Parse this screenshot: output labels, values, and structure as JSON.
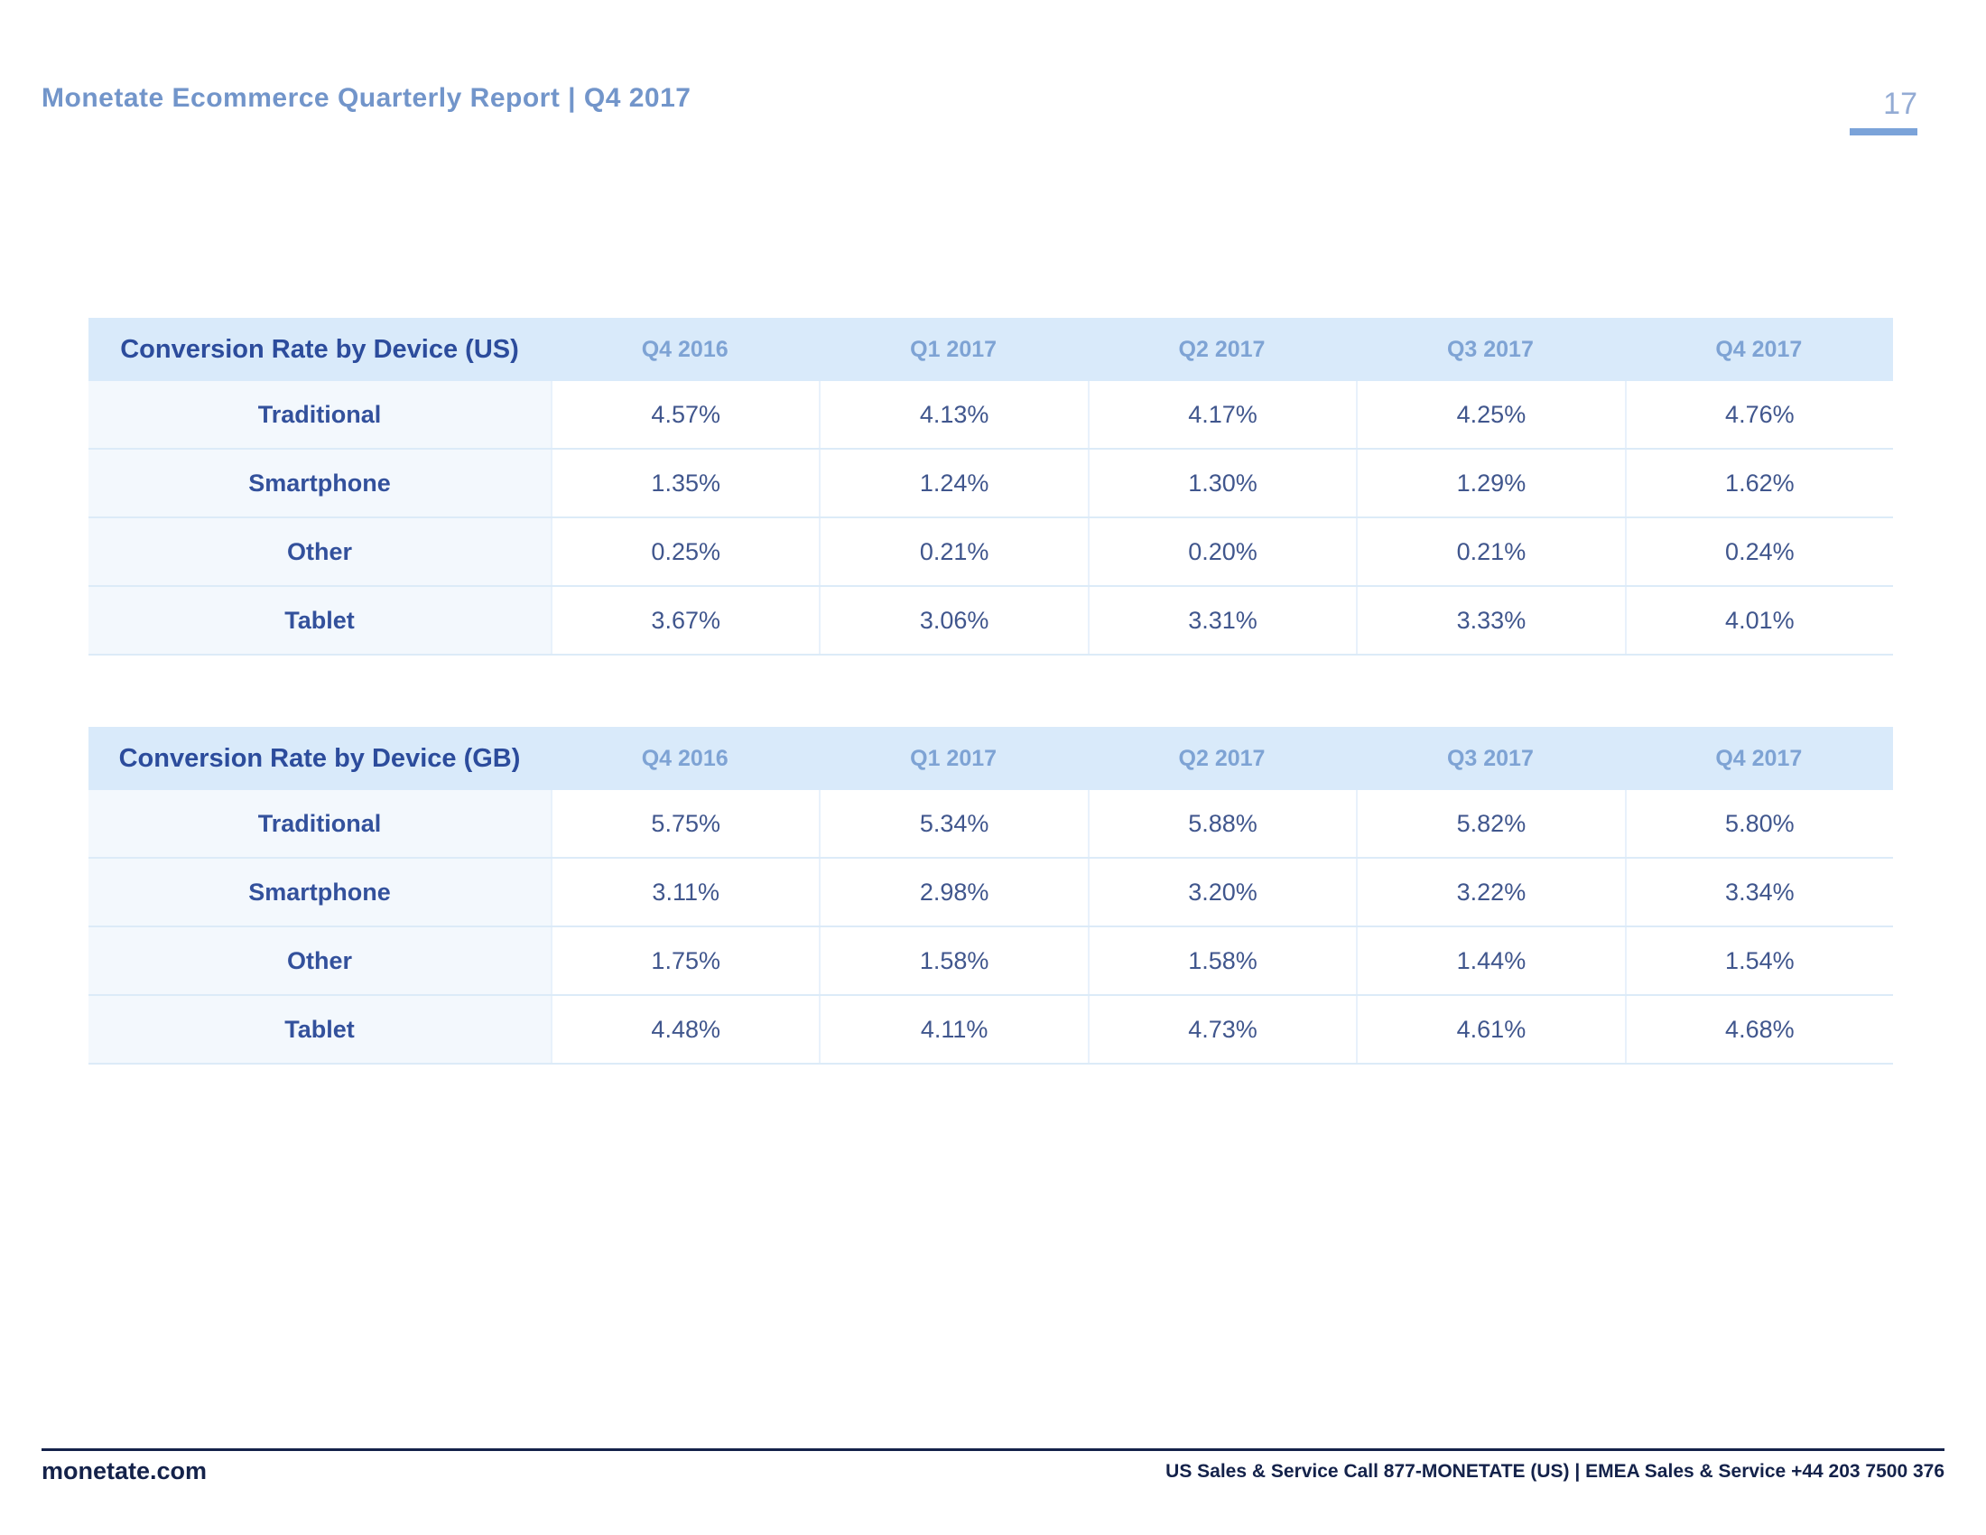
{
  "page": {
    "header_title": "Monetate Ecommerce Quarterly Report | Q4 2017",
    "page_number": "17"
  },
  "colors": {
    "header_title_blue": "#7295ca",
    "page_number_blue": "#93abd4",
    "page_bar_blue": "#7ba3d9",
    "table_header_bg": "#d9eafa",
    "table_title_text": "#2c4c9c",
    "column_header_text": "#7ea3d4",
    "row_label_text": "#33519c",
    "value_text": "#40568d",
    "label_column_bg": "#f3f8fd",
    "footer_navy": "#14224a"
  },
  "chart_data": [
    {
      "type": "table",
      "title": "Conversion Rate by Device (US)",
      "columns": [
        "Q4 2016",
        "Q1 2017",
        "Q2 2017",
        "Q3 2017",
        "Q4 2017"
      ],
      "rows": [
        {
          "label": "Traditional",
          "values": [
            "4.57%",
            "4.13%",
            "4.17%",
            "4.25%",
            "4.76%"
          ]
        },
        {
          "label": "Smartphone",
          "values": [
            "1.35%",
            "1.24%",
            "1.30%",
            "1.29%",
            "1.62%"
          ]
        },
        {
          "label": "Other",
          "values": [
            "0.25%",
            "0.21%",
            "0.20%",
            "0.21%",
            "0.24%"
          ]
        },
        {
          "label": "Tablet",
          "values": [
            "3.67%",
            "3.06%",
            "3.31%",
            "3.33%",
            "4.01%"
          ]
        }
      ]
    },
    {
      "type": "table",
      "title": "Conversion Rate by Device (GB)",
      "columns": [
        "Q4 2016",
        "Q1 2017",
        "Q2 2017",
        "Q3 2017",
        "Q4 2017"
      ],
      "rows": [
        {
          "label": "Traditional",
          "values": [
            "5.75%",
            "5.34%",
            "5.88%",
            "5.82%",
            "5.80%"
          ]
        },
        {
          "label": "Smartphone",
          "values": [
            "3.11%",
            "2.98%",
            "3.20%",
            "3.22%",
            "3.34%"
          ]
        },
        {
          "label": "Other",
          "values": [
            "1.75%",
            "1.58%",
            "1.58%",
            "1.44%",
            "1.54%"
          ]
        },
        {
          "label": "Tablet",
          "values": [
            "4.48%",
            "4.11%",
            "4.73%",
            "4.61%",
            "4.68%"
          ]
        }
      ]
    }
  ],
  "footer": {
    "site": "monetate.com",
    "contact": "US Sales & Service Call 877-MONETATE (US) | EMEA Sales & Service +44 203 7500 376"
  }
}
